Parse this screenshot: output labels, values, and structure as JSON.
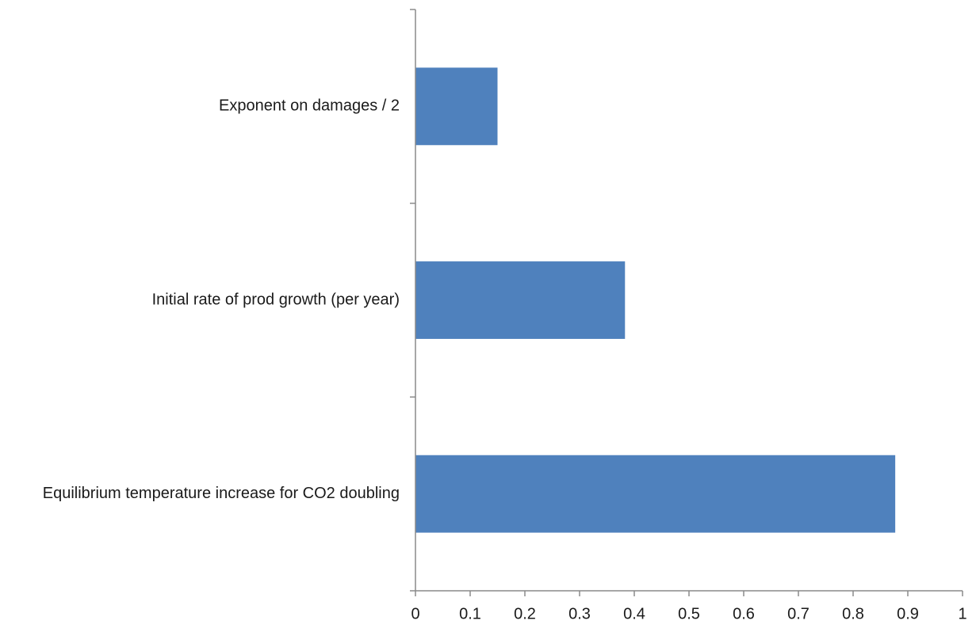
{
  "chart_data": {
    "type": "bar",
    "orientation": "horizontal",
    "categories": [
      "Exponent on damages / 2",
      "Initial rate of prod growth (per year)",
      "Equilibrium temperature increase for CO2 doubling"
    ],
    "values": [
      0.15,
      0.383,
      0.877
    ],
    "xlim": [
      0,
      1
    ],
    "xticks": [
      "0",
      "0.1",
      "0.2",
      "0.3",
      "0.4",
      "0.5",
      "0.6",
      "0.7",
      "0.8",
      "0.9",
      "1"
    ],
    "bar_color": "#4f81bd",
    "grid": false,
    "legend": false
  }
}
